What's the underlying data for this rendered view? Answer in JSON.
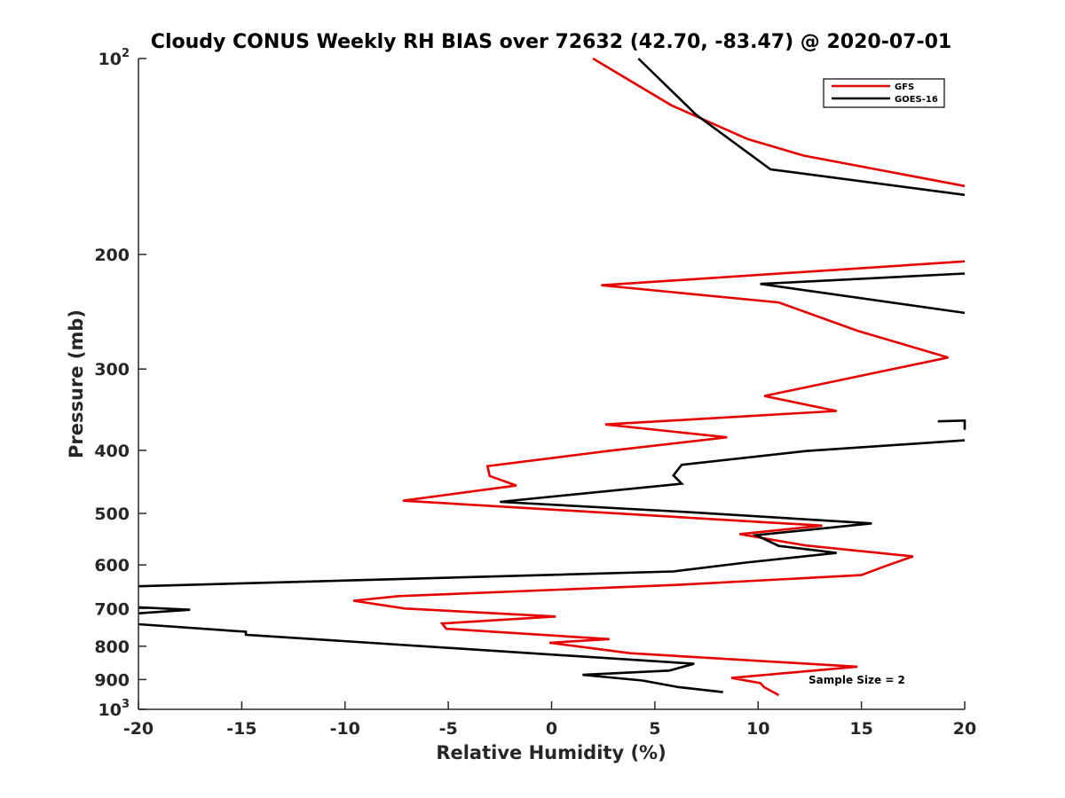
{
  "chart_data": {
    "type": "line",
    "title": "Cloudy CONUS Weekly RH BIAS over 72632 (42.70, -83.47) @ 2020-07-01",
    "xlabel": "Relative Humidity (%)",
    "ylabel": "Pressure (mb)",
    "xlim": [
      -20,
      20
    ],
    "ylim": [
      100,
      1000
    ],
    "y_scale": "log",
    "y_reversed": true,
    "grid": false,
    "legend_position": "top-right",
    "x_ticks": [
      "-20",
      "-15",
      "-10",
      "-5",
      "0",
      "5",
      "10",
      "15",
      "20"
    ],
    "y_ticks": [
      {
        "base": "10",
        "exp": "2"
      },
      {
        "base": "200",
        "exp": ""
      },
      {
        "base": "300",
        "exp": ""
      },
      {
        "base": "400",
        "exp": ""
      },
      {
        "base": "500",
        "exp": ""
      },
      {
        "base": "600",
        "exp": ""
      },
      {
        "base": "700",
        "exp": ""
      },
      {
        "base": "800",
        "exp": ""
      },
      {
        "base": "900",
        "exp": ""
      },
      {
        "base": "10",
        "exp": "3"
      }
    ],
    "annotation": "Sample Size = 2",
    "series": [
      {
        "name": "GFS",
        "color": "#e60000",
        "segments": [
          [
            [
              2.0,
              100
            ],
            [
              5.8,
              118
            ],
            [
              9.5,
              133
            ],
            [
              12.2,
              141
            ],
            [
              20,
              157
            ]
          ],
          [
            [
              20,
              205
            ],
            [
              2.4,
              223
            ],
            [
              11.0,
              237
            ],
            [
              14.8,
              262
            ],
            [
              19.2,
              288
            ],
            [
              10.3,
              330
            ],
            [
              13.8,
              348
            ],
            [
              2.6,
              365
            ],
            [
              8.5,
              382
            ],
            [
              2.7,
              401
            ],
            [
              -3.1,
              423
            ],
            [
              -3.0,
              438
            ],
            [
              -1.7,
              453
            ],
            [
              -7.2,
              478
            ],
            [
              13.1,
              522
            ],
            [
              9.1,
              538
            ],
            [
              12.3,
              560
            ],
            [
              17.5,
              582
            ],
            [
              16.0,
              605
            ],
            [
              15.0,
              622
            ],
            [
              6.0,
              644
            ],
            [
              -7.4,
              670
            ],
            [
              -9.6,
              681
            ],
            [
              -7.1,
              700
            ],
            [
              0.2,
              720
            ],
            [
              -5.3,
              738
            ],
            [
              -5.1,
              752
            ],
            [
              2.8,
              780
            ],
            [
              -0.1,
              790
            ],
            [
              3.8,
              820
            ],
            [
              14.8,
              860
            ],
            [
              8.7,
              895
            ],
            [
              10.1,
              911
            ],
            [
              10.3,
              925
            ],
            [
              11.0,
              951
            ]
          ]
        ]
      },
      {
        "name": "GOES-16",
        "color": "#000000",
        "segments": [
          [
            [
              4.2,
              100
            ],
            [
              7.0,
              122
            ],
            [
              10.6,
              148
            ],
            [
              20,
              162
            ]
          ],
          [
            [
              20,
              214
            ],
            [
              10.1,
              222
            ],
            [
              20,
              246
            ]
          ],
          [
            [
              18.7,
              361
            ],
            [
              20,
              360
            ],
            [
              20,
              372
            ]
          ],
          [
            [
              20,
              386
            ],
            [
              12.3,
              401
            ],
            [
              6.3,
              421
            ],
            [
              5.9,
              437
            ],
            [
              6.3,
              450
            ],
            [
              -2.5,
              480
            ],
            [
              6.8,
              498
            ],
            [
              15.5,
              518
            ],
            [
              9.9,
              540
            ],
            [
              11.0,
              561
            ],
            [
              13.8,
              575
            ],
            [
              9.4,
              595
            ],
            [
              5.9,
              614
            ],
            [
              -20,
              647
            ]
          ],
          [
            [
              -20,
              697
            ],
            [
              -17.5,
              703
            ],
            [
              -20,
              712
            ]
          ],
          [
            [
              -20,
              740
            ],
            [
              -14.8,
              760
            ],
            [
              -14.8,
              768
            ],
            [
              6.9,
              851
            ],
            [
              5.7,
              872
            ],
            [
              1.5,
              885
            ],
            [
              4.4,
              903
            ],
            [
              6.1,
              924
            ],
            [
              8.3,
              941
            ]
          ]
        ]
      }
    ]
  }
}
